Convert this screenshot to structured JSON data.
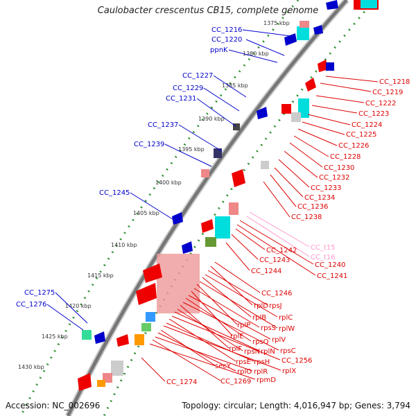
{
  "title": "Caulobacter crescentus CB15, complete genome",
  "footer": {
    "accession": "Accession: NC_002696",
    "stats": "Topology: circular; Length: 4,016,947 bp; Genes: 3,794"
  },
  "colors": {
    "backbone": "#777777",
    "ruler": "#2f8f2f",
    "gene": "#ee0000",
    "trna": "#ff99cc",
    "left_label": "#0000cc",
    "right_label": "#dd0000"
  },
  "ticks": [
    {
      "label": "1375 kbp"
    },
    {
      "label": "1380 kbp"
    },
    {
      "label": "1385 kbp"
    },
    {
      "label": "1390 kbp"
    },
    {
      "label": "1395 kbp"
    },
    {
      "label": "1400 kbp"
    },
    {
      "label": "1405 kbp"
    },
    {
      "label": "1410 kbp"
    },
    {
      "label": "1415 kbp"
    },
    {
      "label": "1420 kbp"
    },
    {
      "label": "1425 kbp"
    },
    {
      "label": "1430 kbp"
    }
  ],
  "left_labels": [
    "CC_1216",
    "CC_1220",
    "ppnK",
    "CC_1227",
    "CC_1229",
    "CC_1231",
    "CC_1237",
    "CC_1239",
    "CC_1245",
    "CC_1275",
    "CC_1276"
  ],
  "right_labels": [
    "CC_1218",
    "CC_1219",
    "CC_1222",
    "CC_1223",
    "CC_1224",
    "CC_1225",
    "CC_1226",
    "CC_1228",
    "CC_1230",
    "CC_1232",
    "CC_1233",
    "CC_1234",
    "CC_1236",
    "CC_1238",
    "CC_t15",
    "CC_t16",
    "CC_1242",
    "CC_1243",
    "CC_1240",
    "CC_1241",
    "CC_1244",
    "CC_1246",
    "rplD",
    "rpsJ",
    "rplC",
    "rplB",
    "rplW",
    "rplP",
    "rpsS",
    "rplE",
    "rplV",
    "rpsQ",
    "rpsC",
    "rplF",
    "rpsN",
    "rplN",
    "CC_1256",
    "rpsE",
    "rpsH",
    "rplX",
    "secY",
    "rplO",
    "rplR",
    "CC_1269",
    "rpmD",
    "CC_1274"
  ]
}
